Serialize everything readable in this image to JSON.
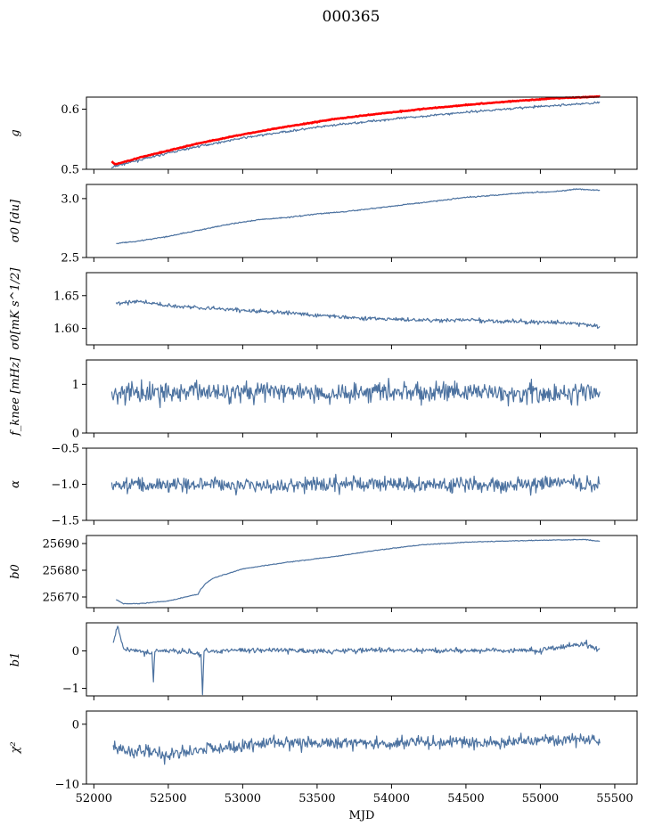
{
  "figure": {
    "title": "000365"
  },
  "colors": {
    "series": "#4c72a0",
    "reference": "#ff0000",
    "frame": "#000000"
  },
  "chart_data": [
    {
      "type": "line",
      "ylabel": "g",
      "ylim": [
        0.5,
        0.62
      ],
      "yticks": [
        0.5,
        0.6
      ],
      "ytick_labels": [
        "0.5",
        "0.6"
      ],
      "xlim": [
        51950,
        55650
      ],
      "series": [
        {
          "x": [
            52120,
            52140,
            52300,
            52500,
            52700,
            53000,
            53300,
            53600,
            53900,
            54200,
            54500,
            54800,
            55100,
            55400
          ],
          "values": [
            0.502,
            0.505,
            0.515,
            0.527,
            0.538,
            0.552,
            0.563,
            0.573,
            0.581,
            0.588,
            0.595,
            0.601,
            0.606,
            0.611
          ]
        },
        {
          "x": [
            52120,
            52140,
            52300,
            52500,
            52700,
            53000,
            53300,
            53600,
            53900,
            54200,
            54500,
            54800,
            55100,
            55400
          ],
          "values": [
            0.513,
            0.508,
            0.519,
            0.531,
            0.543,
            0.558,
            0.571,
            0.583,
            0.592,
            0.6,
            0.607,
            0.613,
            0.618,
            0.621
          ]
        }
      ]
    },
    {
      "type": "line",
      "ylabel": "σ0 [du]",
      "ylim": [
        2.5,
        3.12
      ],
      "yticks": [
        2.5,
        3.0
      ],
      "ytick_labels": [
        "2.5",
        "3.0"
      ],
      "xlim": [
        51950,
        55650
      ],
      "series": [
        {
          "x": [
            52150,
            52300,
            52500,
            52700,
            52900,
            53100,
            53300,
            53500,
            53700,
            53900,
            54100,
            54300,
            54500,
            54700,
            54900,
            55100,
            55250,
            55400
          ],
          "values": [
            2.62,
            2.64,
            2.68,
            2.73,
            2.78,
            2.82,
            2.84,
            2.87,
            2.89,
            2.92,
            2.95,
            2.98,
            3.01,
            3.03,
            3.05,
            3.06,
            3.08,
            3.07
          ]
        }
      ]
    },
    {
      "type": "line",
      "ylabel": "σ0[mK s^1/2]",
      "ylim": [
        1.575,
        1.685
      ],
      "yticks": [
        1.6,
        1.65
      ],
      "ytick_labels": [
        "1.60",
        "1.65"
      ],
      "xlim": [
        51950,
        55650
      ],
      "series": [
        {
          "x": [
            52150,
            52300,
            52500,
            52700,
            52900,
            53100,
            53300,
            53500,
            53700,
            53900,
            54100,
            54300,
            54500,
            54700,
            54900,
            55100,
            55250,
            55400
          ],
          "values": [
            1.638,
            1.641,
            1.635,
            1.632,
            1.629,
            1.626,
            1.624,
            1.62,
            1.617,
            1.615,
            1.613,
            1.612,
            1.613,
            1.611,
            1.61,
            1.609,
            1.607,
            1.603
          ]
        }
      ]
    },
    {
      "type": "line",
      "ylabel": "f_knee [mHz]",
      "ylim": [
        0,
        1.5
      ],
      "yticks": [
        0,
        1
      ],
      "ytick_labels": [
        "0",
        "1"
      ],
      "xlim": [
        51950,
        55650
      ],
      "series": [
        {
          "x": [
            52120,
            52400,
            52700,
            53000,
            53300,
            53600,
            53900,
            54200,
            54500,
            54800,
            55100,
            55400
          ],
          "values": [
            0.8,
            0.82,
            0.85,
            0.88,
            0.84,
            0.82,
            0.86,
            0.83,
            0.84,
            0.82,
            0.8,
            0.85
          ]
        }
      ]
    },
    {
      "type": "line",
      "ylabel": "α",
      "ylim": [
        -1.5,
        -0.5
      ],
      "yticks": [
        -1.5,
        -1.0,
        -0.5
      ],
      "ytick_labels": [
        "−1.5",
        "−1.0",
        "−0.5"
      ],
      "xlim": [
        51950,
        55650
      ],
      "series": [
        {
          "x": [
            52120,
            52400,
            52700,
            53000,
            53300,
            53600,
            53900,
            54200,
            54500,
            54800,
            55100,
            55400
          ],
          "values": [
            -1.02,
            -1.0,
            -0.98,
            -1.01,
            -1.03,
            -1.0,
            -0.98,
            -1.01,
            -1.0,
            -1.02,
            -0.98,
            -1.0
          ]
        }
      ]
    },
    {
      "type": "line",
      "ylabel": "b0",
      "ylim": [
        25666,
        25693
      ],
      "yticks": [
        25670,
        25680,
        25690
      ],
      "ytick_labels": [
        "25670",
        "25680",
        "25690"
      ],
      "xlim": [
        51950,
        55650
      ],
      "series": [
        {
          "x": [
            52150,
            52200,
            52300,
            52500,
            52650,
            52700,
            52720,
            52750,
            52800,
            53000,
            53300,
            53600,
            53900,
            54200,
            54500,
            54800,
            55100,
            55300,
            55400
          ],
          "values": [
            25669,
            25667.5,
            25667.5,
            25668.5,
            25670.5,
            25671,
            25673,
            25675,
            25677,
            25680.5,
            25683,
            25685,
            25687.5,
            25689.5,
            25690.5,
            25691,
            25691.3,
            25691.5,
            25690.8
          ]
        }
      ]
    },
    {
      "type": "line",
      "ylabel": "b1",
      "ylim": [
        -1.2,
        0.75
      ],
      "yticks": [
        -1,
        0
      ],
      "ytick_labels": [
        "−1",
        "0"
      ],
      "xlim": [
        51950,
        55650
      ],
      "series": [
        {
          "x": [
            52130,
            52160,
            52200,
            52300,
            52390,
            52400,
            52410,
            52600,
            52720,
            52730,
            52740,
            53000,
            53500,
            54000,
            54500,
            55000,
            55300,
            55400
          ],
          "values": [
            0.25,
            0.65,
            0.05,
            0.0,
            -0.1,
            -0.75,
            0.0,
            0.0,
            -0.1,
            -1.1,
            0.0,
            0.02,
            0.0,
            0.02,
            0.0,
            0.02,
            0.2,
            0.05
          ]
        }
      ]
    },
    {
      "type": "line",
      "ylabel": "χ²",
      "ylim": [
        -10,
        2.2
      ],
      "yticks": [
        -10,
        0
      ],
      "ytick_labels": [
        "−10",
        "0"
      ],
      "xlim": [
        51950,
        55650
      ],
      "xticks": [
        52000,
        52500,
        53000,
        53500,
        54000,
        54500,
        55000,
        55500
      ],
      "xtick_labels": [
        "52000",
        "52500",
        "53000",
        "53500",
        "54000",
        "54500",
        "55000",
        "55500"
      ],
      "xlabel": "MJD",
      "series": [
        {
          "x": [
            52130,
            52300,
            52500,
            52700,
            52900,
            53100,
            53300,
            53500,
            53700,
            53900,
            54100,
            54300,
            54500,
            54700,
            54900,
            55100,
            55300,
            55400
          ],
          "values": [
            -4.0,
            -4.5,
            -5.0,
            -4.2,
            -3.8,
            -3.5,
            -2.8,
            -3.2,
            -3.0,
            -3.3,
            -3.1,
            -2.9,
            -3.0,
            -3.2,
            -2.8,
            -2.6,
            -2.4,
            -3.2
          ]
        }
      ]
    }
  ]
}
